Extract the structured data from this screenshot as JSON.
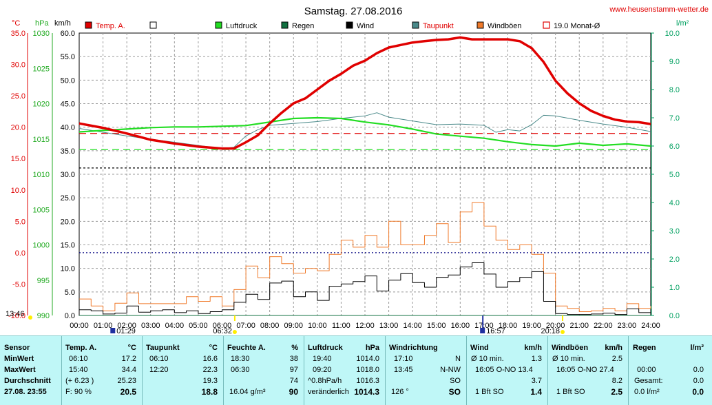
{
  "header": {
    "title": "Samstag. 27.08.2016",
    "site": "www.heusenstamm-wetter.de"
  },
  "legend": [
    {
      "label": "Temp. A.",
      "color": "#e00000",
      "style": "box"
    },
    {
      "label": "",
      "color": "#ffffff",
      "style": "box"
    },
    {
      "label": "Luftdruck",
      "color": "#22dd22",
      "style": "box"
    },
    {
      "label": "Regen",
      "color": "#107040",
      "style": "box"
    },
    {
      "label": "Wind",
      "color": "#000000",
      "style": "box"
    },
    {
      "label": "Taupunkt",
      "color": "#4a8a8a",
      "style": "box"
    },
    {
      "label": "Windböen",
      "color": "#f07a2a",
      "style": "box"
    },
    {
      "label": "19.0 Monat-Ø",
      "color": "#e00000",
      "style": "outline"
    }
  ],
  "axis_units": {
    "temp": "°C",
    "pressure": "hPa",
    "wind": "km/h",
    "rain": "l/m²"
  },
  "axes": {
    "temp_ticks": [
      "35.0",
      "30.0",
      "25.0",
      "20.0",
      "15.0",
      "10.0",
      "5.0",
      "0.0",
      "-5.0",
      "-10.0"
    ],
    "pressure_ticks": [
      "1030",
      "1025",
      "1020",
      "1015",
      "1010",
      "1005",
      "1000",
      "995",
      "990"
    ],
    "wind_ticks": [
      "60.0",
      "55.0",
      "50.0",
      "45.0",
      "40.0",
      "35.0",
      "30.0",
      "25.0",
      "20.0",
      "15.0",
      "10.0",
      "5.0",
      "0.0"
    ],
    "rain_ticks": [
      "10.0",
      "9.0",
      "8.0",
      "7.0",
      "6.0",
      "5.0",
      "4.0",
      "3.0",
      "2.0",
      "1.0",
      "0.0"
    ],
    "time_ticks": [
      "00:00",
      "01:00",
      "02:00",
      "03:00",
      "04:00",
      "05:00",
      "06:00",
      "07:00",
      "08:00",
      "09:00",
      "10:00",
      "11:00",
      "12:00",
      "13:00",
      "14:00",
      "15:00",
      "16:00",
      "17:00",
      "18:00",
      "19:00",
      "20:00",
      "21:00",
      "22:00",
      "23:00",
      "24:00"
    ]
  },
  "markers": {
    "moonset": "13:46",
    "moonrise": "01:29",
    "sunrise": "06:32",
    "moon2": "16:57",
    "sunset": "20:18"
  },
  "colors": {
    "temp": "#e00000",
    "pressure": "#22dd22",
    "dew": "#4a8a8a",
    "wind": "#000000",
    "gust": "#f07a2a",
    "rain_axis": "#00a060",
    "grid": "#999999"
  },
  "chart_data": {
    "type": "line",
    "title": "Samstag. 27.08.2016",
    "x_unit": "hour",
    "x_range": [
      0,
      24
    ],
    "temp_range": [
      -10,
      35
    ],
    "pressure_range": [
      990,
      1030
    ],
    "wind_range": [
      0,
      60
    ],
    "rain_range": [
      0,
      10
    ],
    "reference_lines": [
      {
        "name": "19.0 Monat-Ø",
        "axis": "temp",
        "value": 19.0
      },
      {
        "name": "pressure-ref",
        "axis": "pressure",
        "value": 1013.5
      },
      {
        "name": "temp-ref",
        "axis": "temp",
        "value": 13.5
      },
      {
        "name": "temp-zero",
        "axis": "temp",
        "value": 0.0
      }
    ],
    "series": [
      {
        "name": "Temp. A.",
        "axis": "temp",
        "x": [
          0,
          1,
          2,
          3,
          4,
          5,
          6,
          6.5,
          7,
          7.5,
          8,
          8.5,
          9,
          9.5,
          10,
          10.5,
          11,
          11.5,
          12,
          12.5,
          13,
          13.5,
          14,
          14.5,
          15,
          15.5,
          16,
          16.5,
          17,
          17.5,
          18,
          18.5,
          19,
          19.5,
          20,
          20.5,
          21,
          21.5,
          22,
          22.5,
          23,
          23.5,
          24
        ],
        "y": [
          20.6,
          19.9,
          19.0,
          18.0,
          17.4,
          16.9,
          16.6,
          16.6,
          17.6,
          18.7,
          20.6,
          22.3,
          23.8,
          24.6,
          26.0,
          27.4,
          28.5,
          29.8,
          30.6,
          31.8,
          32.7,
          33.1,
          33.5,
          33.7,
          33.9,
          34.0,
          34.3,
          34.0,
          34.0,
          34.0,
          34.0,
          33.7,
          32.6,
          30.4,
          27.4,
          25.4,
          23.8,
          22.6,
          21.8,
          21.2,
          20.9,
          20.8,
          20.5
        ]
      },
      {
        "name": "Taupunkt",
        "axis": "temp",
        "x": [
          0,
          1,
          2,
          3,
          4,
          5,
          6,
          6.5,
          7,
          7.5,
          8,
          9,
          10,
          11,
          11.5,
          12,
          12.5,
          13,
          14,
          15,
          16,
          17,
          17.5,
          18,
          18.5,
          19,
          19.5,
          20,
          21,
          22,
          23,
          24
        ],
        "y": [
          19.8,
          19.2,
          18.6,
          18.1,
          17.6,
          17.1,
          16.6,
          16.8,
          18.6,
          19.6,
          20.3,
          20.6,
          20.9,
          21.4,
          21.6,
          21.8,
          22.3,
          21.6,
          21.0,
          20.4,
          20.5,
          20.3,
          19.2,
          19.6,
          19.4,
          20.4,
          21.9,
          21.8,
          21.1,
          20.5,
          20.0,
          19.3
        ]
      },
      {
        "name": "Luftdruck",
        "axis": "pressure",
        "x": [
          0,
          1,
          2,
          3,
          4,
          5,
          6,
          7,
          8,
          9,
          10,
          11,
          12,
          13,
          14,
          15,
          16,
          17,
          18,
          19,
          20,
          21,
          22,
          23,
          24
        ],
        "y": [
          1016.0,
          1016.2,
          1016.4,
          1016.6,
          1016.7,
          1016.7,
          1016.8,
          1016.9,
          1017.4,
          1017.9,
          1018.0,
          1017.9,
          1017.4,
          1017.0,
          1016.4,
          1015.7,
          1015.4,
          1015.1,
          1014.6,
          1014.2,
          1014.0,
          1014.4,
          1014.1,
          1014.3,
          1014.0
        ]
      },
      {
        "name": "Wind",
        "axis": "wind",
        "x": [
          0,
          0.5,
          1,
          1.5,
          2,
          2.5,
          3,
          3.5,
          4,
          4.5,
          5,
          5.5,
          6,
          6.5,
          7,
          7.5,
          8,
          8.5,
          9,
          9.5,
          10,
          10.5,
          11,
          11.5,
          12,
          12.5,
          13,
          13.5,
          14,
          14.5,
          15,
          15.5,
          16,
          16.5,
          17,
          17.5,
          18,
          18.5,
          19,
          19.5,
          20,
          20.5,
          21,
          21.5,
          22,
          22.5,
          23,
          23.5,
          24
        ],
        "y": [
          1.2,
          1.0,
          0.3,
          0.5,
          2.0,
          0.7,
          1.0,
          1.2,
          0.6,
          1.0,
          0.4,
          0.8,
          1.2,
          2.8,
          4.5,
          3.4,
          6.9,
          7.3,
          4.0,
          5.0,
          3.2,
          6.2,
          6.7,
          7.2,
          8.4,
          5.2,
          7.5,
          8.9,
          7.0,
          6.0,
          8.1,
          8.6,
          10.3,
          11.2,
          8.8,
          6.0,
          7.2,
          8.1,
          9.3,
          3.0,
          0.4,
          0.2,
          0.2,
          0.3,
          0.5,
          0.2,
          1.4,
          0.6,
          1.0
        ]
      },
      {
        "name": "Windböen",
        "axis": "wind",
        "x": [
          0,
          0.5,
          1,
          1.5,
          2,
          2.5,
          3,
          3.5,
          4,
          4.5,
          5,
          5.5,
          6,
          6.5,
          7,
          7.5,
          8,
          8.5,
          9,
          9.5,
          10,
          10.5,
          11,
          11.5,
          12,
          12.5,
          13,
          13.5,
          14,
          14.5,
          15,
          15.5,
          16,
          16.5,
          17,
          17.5,
          18,
          18.5,
          19,
          19.5,
          20,
          20.5,
          21,
          21.5,
          22,
          22.5,
          23,
          23.5,
          24
        ],
        "y": [
          3.5,
          2.0,
          1.0,
          2.6,
          4.8,
          2.5,
          2.5,
          2.5,
          2.5,
          4.0,
          3.0,
          4.0,
          2.0,
          5.5,
          10.5,
          8.0,
          12.5,
          11.0,
          9.0,
          10.0,
          9.5,
          13.0,
          16.0,
          14.5,
          17.0,
          14.5,
          20.0,
          15.0,
          15.0,
          17.0,
          19.5,
          15.5,
          22.0,
          24.0,
          19.0,
          16.0,
          14.0,
          15.0,
          13.0,
          9.0,
          2.0,
          1.5,
          0.8,
          1.0,
          1.5,
          1.0,
          2.5,
          1.5,
          2.0
        ]
      },
      {
        "name": "Regen",
        "axis": "rain",
        "x": [
          0,
          24
        ],
        "y": [
          0.0,
          0.0
        ]
      }
    ]
  },
  "stats": {
    "sensor": {
      "header": "Sensor",
      "rows": [
        "MinWert",
        "MaxWert",
        "Durchschnitt",
        "27.08. 23:55"
      ]
    },
    "temp": {
      "header": "Temp. A.",
      "unit": "°C",
      "rows": [
        [
          "06:10",
          "17.2"
        ],
        [
          "15:40",
          "34.4"
        ],
        [
          "(+ 6.23 )",
          "25.23"
        ],
        [
          "F: 90 %",
          "20.5"
        ]
      ]
    },
    "dew": {
      "header": "Taupunkt",
      "unit": "°C",
      "rows": [
        [
          "06:10",
          "16.6"
        ],
        [
          "12:20",
          "22.3"
        ],
        [
          "",
          "19.3"
        ],
        [
          "",
          "18.8"
        ]
      ]
    },
    "humidity": {
      "header": "Feuchte A.",
      "unit": "%",
      "rows": [
        [
          "18:30",
          "38"
        ],
        [
          "06:30",
          "97"
        ],
        [
          "",
          "74"
        ],
        [
          "16.04 g/m³",
          "90"
        ]
      ]
    },
    "pressure": {
      "header": "Luftdruck",
      "unit": "hPa",
      "rows": [
        [
          "19:40",
          "1014.0"
        ],
        [
          "09:20",
          "1018.0"
        ],
        [
          "^0.8hPa/h",
          "1016.3"
        ],
        [
          "veränderlich",
          "1014.3"
        ]
      ]
    },
    "winddir": {
      "header": "Windrichtung",
      "rows": [
        [
          "17:10",
          "N"
        ],
        [
          "13:45",
          "N-NW"
        ],
        [
          "",
          "SO"
        ],
        [
          "126 °",
          "SO"
        ]
      ]
    },
    "wind": {
      "header": "Wind",
      "unit": "km/h",
      "rows": [
        [
          "Ø 10 min.",
          "1.3"
        ],
        [
          "16:05   O-NO 13.4",
          ""
        ],
        [
          "",
          "3.7"
        ],
        [
          "1 Bft SO",
          "1.4"
        ]
      ]
    },
    "gust": {
      "header": "Windböen",
      "unit": "km/h",
      "rows": [
        [
          "Ø 10 min.",
          "2.5"
        ],
        [
          "16:05   O-NO 27.4",
          ""
        ],
        [
          "",
          "8.2"
        ],
        [
          "1 Bft SO",
          "2.5"
        ]
      ]
    },
    "rain": {
      "header": "Regen",
      "unit": "l/m²",
      "rows": [
        [
          "00:00",
          "0.0"
        ],
        [
          "Gesamt:",
          "0.0"
        ],
        [
          "0.0 l/m²",
          "0.0"
        ]
      ]
    }
  }
}
